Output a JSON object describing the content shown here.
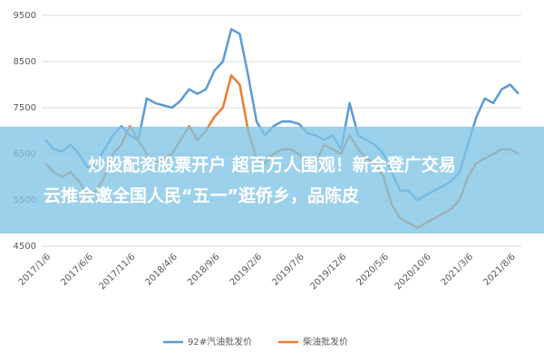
{
  "chart_data": {
    "type": "line",
    "categories": [
      "2017/1/6",
      null,
      null,
      null,
      null,
      "2017/6/6",
      null,
      null,
      null,
      null,
      "2017/11/6",
      null,
      null,
      null,
      null,
      "2018/4/6",
      null,
      null,
      null,
      null,
      "2018/9/6",
      null,
      null,
      null,
      null,
      "2019/2/6",
      null,
      null,
      null,
      null,
      "2019/7/6",
      null,
      null,
      null,
      null,
      "2019/12/6",
      null,
      null,
      null,
      null,
      "2020/5/6",
      null,
      null,
      null,
      null,
      "2020/10/6",
      null,
      null,
      null,
      null,
      "2021/3/6",
      null,
      null,
      null,
      null,
      "2021/8/6",
      null
    ],
    "series": [
      {
        "name": "92#汽油批发价",
        "color": "#5b9bd5",
        "values": [
          6800,
          6600,
          6550,
          6700,
          6500,
          6200,
          6300,
          6600,
          6900,
          7100,
          6900,
          6800,
          7700,
          7600,
          7550,
          7500,
          7650,
          7900,
          7800,
          7900,
          8300,
          8500,
          9200,
          9100,
          8200,
          7200,
          6900,
          7100,
          7200,
          7200,
          7150,
          6950,
          6900,
          6800,
          6900,
          6600,
          7600,
          6900,
          6800,
          6700,
          6500,
          6100,
          5700,
          5700,
          5500,
          5600,
          5700,
          5800,
          5900,
          6100,
          6700,
          7300,
          7700,
          7600,
          7900,
          8000,
          7800
        ]
      },
      {
        "name": "柴油批发价",
        "color": "#ed7d31",
        "values": [
          6300,
          6100,
          6000,
          6100,
          5900,
          5600,
          5700,
          6000,
          6500,
          6700,
          7100,
          6800,
          6500,
          6300,
          6400,
          6500,
          6800,
          7100,
          6800,
          7000,
          7300,
          7500,
          8200,
          8000,
          7000,
          6400,
          6300,
          6500,
          6600,
          6600,
          6500,
          6300,
          6300,
          6700,
          6600,
          6500,
          6900,
          6600,
          6400,
          6300,
          6000,
          5400,
          5100,
          5000,
          4900,
          5000,
          5100,
          5200,
          5300,
          5500,
          6000,
          6300,
          6400,
          6500,
          6600,
          6600,
          6500
        ]
      }
    ],
    "ylim": [
      4500,
      9500
    ],
    "yticks": [
      4500,
      5500,
      6500,
      7500,
      8500,
      9500
    ],
    "grid": true,
    "annotations": [
      "炒股配资股票开户 超百万人围观！新会登广交易",
      "云推会邀全国人民“五一”逛侨乡，品陈皮"
    ]
  }
}
